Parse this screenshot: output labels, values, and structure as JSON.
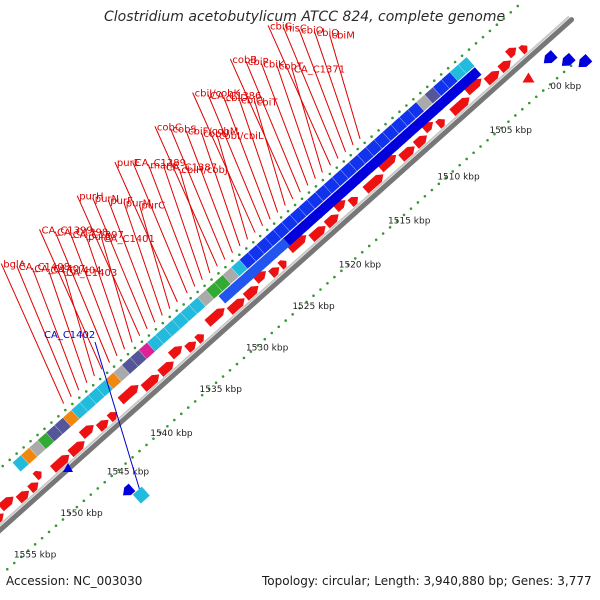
{
  "title": "Clostridium acetobutylicum ATCC 824, complete genome",
  "accession": "Accession: NC_003030",
  "summary": "Topology: circular; Length: 3,940,880 bp; Genes: 3,777",
  "ticks": [
    {
      "label": ".00 kbp",
      "t": 0.03
    },
    {
      "label": "1505 kbp",
      "t": 0.115
    },
    {
      "label": "1510 kbp",
      "t": 0.205
    },
    {
      "label": "1515 kbp",
      "t": 0.29
    },
    {
      "label": "1520 kbp",
      "t": 0.375
    },
    {
      "label": "1525 kbp",
      "t": 0.455
    },
    {
      "label": "1530 kbp",
      "t": 0.535
    },
    {
      "label": "1535 kbp",
      "t": 0.615
    },
    {
      "label": "1540 kbp",
      "t": 0.7
    },
    {
      "label": "1545 kbp",
      "t": 0.775
    },
    {
      "label": "1550 kbp",
      "t": 0.855
    },
    {
      "label": "1555 kbp",
      "t": 0.935
    }
  ],
  "blue_label": "CA_C1402",
  "gene_labels": [
    {
      "text": "cbiM",
      "t": 0.285
    },
    {
      "text": "cbiQ",
      "t": 0.297
    },
    {
      "text": "cbiO",
      "t": 0.31
    },
    {
      "text": "hisC",
      "t": 0.323
    },
    {
      "text": "cbiG",
      "t": 0.336
    },
    {
      "text": "CA_C1371",
      "t": 0.35
    },
    {
      "text": "cobT",
      "t": 0.362
    },
    {
      "text": "cbiK",
      "t": 0.375
    },
    {
      "text": "cbiP",
      "t": 0.388
    },
    {
      "text": "cobB",
      "t": 0.401
    },
    {
      "text": "cbiT",
      "t": 0.414
    },
    {
      "text": "cbiC",
      "t": 0.427
    },
    {
      "text": "cbiD",
      "t": 0.44
    },
    {
      "text": "CA_C1386",
      "t": 0.453
    },
    {
      "text": "cbiJ/cobK",
      "t": 0.466
    },
    {
      "text": "cobI/cbiL",
      "t": 0.479
    },
    {
      "text": "cobU",
      "t": 0.492
    },
    {
      "text": "cbiF/cobM",
      "t": 0.505
    },
    {
      "text": "cobS",
      "t": 0.518
    },
    {
      "text": "cobC",
      "t": 0.531
    },
    {
      "text": "cbiH/cobJ",
      "t": 0.544
    },
    {
      "text": "CA_C1387",
      "t": 0.557
    },
    {
      "text": "manC",
      "t": 0.57
    },
    {
      "text": "CA_C1389",
      "t": 0.583
    },
    {
      "text": "purE",
      "t": 0.6
    },
    {
      "text": "purC",
      "t": 0.613
    },
    {
      "text": "purM",
      "t": 0.626
    },
    {
      "text": "purF",
      "t": 0.639
    },
    {
      "text": "purN",
      "t": 0.652
    },
    {
      "text": "purH",
      "t": 0.665
    },
    {
      "text": "CA_C1401",
      "t": 0.678
    },
    {
      "text": "purD",
      "t": 0.691
    },
    {
      "text": "CA_C1397",
      "t": 0.704
    },
    {
      "text": "CA_C1398",
      "t": 0.717
    },
    {
      "text": "CA_C1399",
      "t": 0.73
    },
    {
      "text": "CA_C1403",
      "t": 0.743
    },
    {
      "text": "CA_C1404",
      "t": 0.756
    },
    {
      "text": "CA_C1407",
      "t": 0.77
    },
    {
      "text": "CA_C1408",
      "t": 0.783
    },
    {
      "text": "bglA",
      "t": 0.796
    }
  ],
  "colors": {
    "forward_cds": "#ee1111",
    "reverse_cds": "#0000dd",
    "label_red": "#dd0000",
    "label_blue": "#0000cc",
    "backbone": "#888888",
    "tick_dots": "#339933",
    "cog_blue": "#1133ee",
    "cog_cyan": "#22bbdd",
    "cog_green": "#33aa33",
    "cog_purple": "#555599",
    "cog_orange": "#ee8811",
    "cog_gray": "#aaaaaa",
    "cog_magenta": "#dd2299"
  }
}
